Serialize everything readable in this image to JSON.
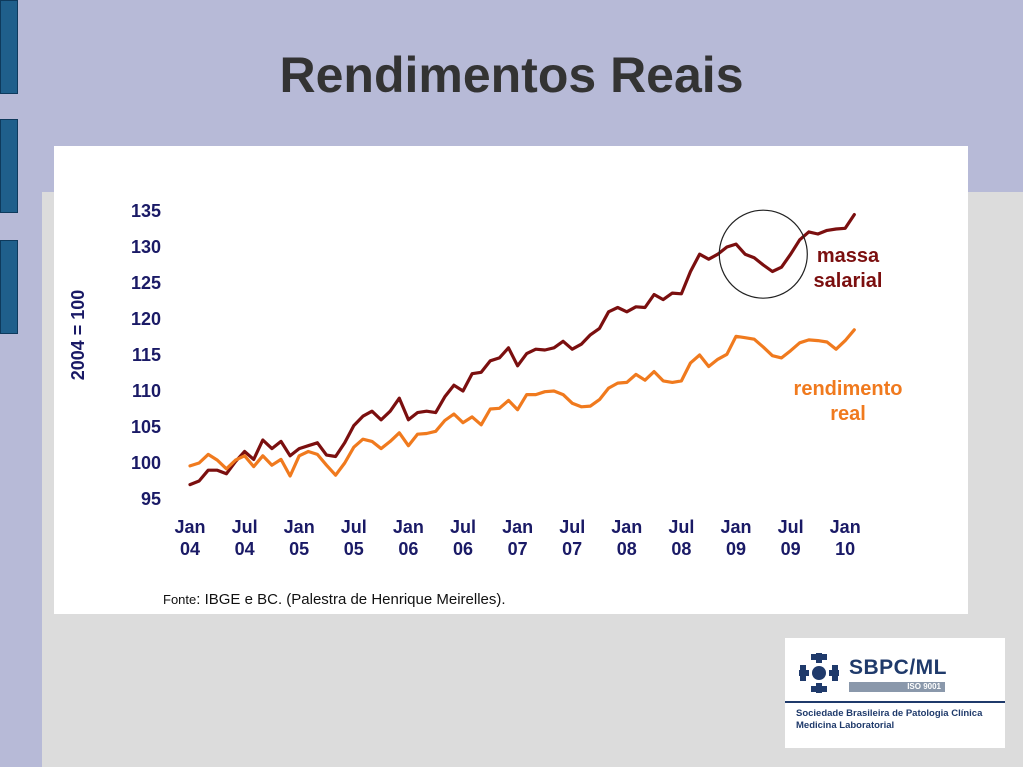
{
  "slide": {
    "title": "Rendimentos Reais",
    "source_label": "Fonte",
    "source_text": ": IBGE e BC. (Palestra de Henrique Meirelles)."
  },
  "logo": {
    "acronym": "SBPC/ML",
    "iso": "ISO 9001",
    "full_name": "Sociedade Brasileira de Patologia Clínica Medicina Laboratorial"
  },
  "colors": {
    "background": "#b7bad7",
    "massa": "#7b0f0f",
    "rendimento": "#f07a1e",
    "axis_text": "#1a1a66"
  },
  "chart_data": {
    "type": "line",
    "ylabel": "2004 = 100",
    "ylim": [
      95,
      135
    ],
    "yticks": [
      95,
      100,
      105,
      110,
      115,
      120,
      125,
      130,
      135
    ],
    "xticks": [
      "Jan 04",
      "Jul 04",
      "Jan 05",
      "Jul 05",
      "Jan 06",
      "Jul 06",
      "Jan 07",
      "Jul 07",
      "Jan 08",
      "Jul 08",
      "Jan 09",
      "Jul 09",
      "Jan 10"
    ],
    "grid": false,
    "annotation": "circle around Jan 09 – Jul 09 dip of massa salarial",
    "series": [
      {
        "name": "massa salarial",
        "color": "#7b0f0f",
        "x": [
          "2004-01",
          "2004-02",
          "2004-03",
          "2004-04",
          "2004-05",
          "2004-06",
          "2004-07",
          "2004-08",
          "2004-09",
          "2004-10",
          "2004-11",
          "2004-12",
          "2005-01",
          "2005-02",
          "2005-03",
          "2005-04",
          "2005-05",
          "2005-06",
          "2005-07",
          "2005-08",
          "2005-09",
          "2005-10",
          "2005-11",
          "2005-12",
          "2006-01",
          "2006-02",
          "2006-03",
          "2006-04",
          "2006-05",
          "2006-06",
          "2006-07",
          "2006-08",
          "2006-09",
          "2006-10",
          "2006-11",
          "2006-12",
          "2007-01",
          "2007-02",
          "2007-03",
          "2007-04",
          "2007-05",
          "2007-06",
          "2007-07",
          "2007-08",
          "2007-09",
          "2007-10",
          "2007-11",
          "2007-12",
          "2008-01",
          "2008-02",
          "2008-03",
          "2008-04",
          "2008-05",
          "2008-06",
          "2008-07",
          "2008-08",
          "2008-09",
          "2008-10",
          "2008-11",
          "2008-12",
          "2009-01",
          "2009-02",
          "2009-03",
          "2009-04",
          "2009-05",
          "2009-06",
          "2009-07",
          "2009-08",
          "2009-09",
          "2009-10",
          "2009-11",
          "2009-12",
          "2010-01",
          "2010-02"
        ],
        "values": [
          97.0,
          97.5,
          99.0,
          99.0,
          98.5,
          100.2,
          101.6,
          100.5,
          103.2,
          102.0,
          103.0,
          101.0,
          102.0,
          102.4,
          102.8,
          101.1,
          100.9,
          102.8,
          105.2,
          106.5,
          107.2,
          106.0,
          107.2,
          109.0,
          106.0,
          107.0,
          107.2,
          107.0,
          109.2,
          110.8,
          110.0,
          112.4,
          112.6,
          114.2,
          114.6,
          116.0,
          113.5,
          115.2,
          115.8,
          115.7,
          116.0,
          116.9,
          115.8,
          116.5,
          117.8,
          118.7,
          121.0,
          121.6,
          121.0,
          121.7,
          121.6,
          123.4,
          122.7,
          123.6,
          123.5,
          126.6,
          129.0,
          128.3,
          129.0,
          130.0,
          130.4,
          129.0,
          128.5,
          127.5,
          126.6,
          127.2,
          129.0,
          131.0,
          132.1,
          131.8,
          132.3,
          132.5,
          132.6,
          134.5
        ]
      },
      {
        "name": "rendimento real",
        "color": "#f07a1e",
        "x": [
          "2004-01",
          "2004-02",
          "2004-03",
          "2004-04",
          "2004-05",
          "2004-06",
          "2004-07",
          "2004-08",
          "2004-09",
          "2004-10",
          "2004-11",
          "2004-12",
          "2005-01",
          "2005-02",
          "2005-03",
          "2005-04",
          "2005-05",
          "2005-06",
          "2005-07",
          "2005-08",
          "2005-09",
          "2005-10",
          "2005-11",
          "2005-12",
          "2006-01",
          "2006-02",
          "2006-03",
          "2006-04",
          "2006-05",
          "2006-06",
          "2006-07",
          "2006-08",
          "2006-09",
          "2006-10",
          "2006-11",
          "2006-12",
          "2007-01",
          "2007-02",
          "2007-03",
          "2007-04",
          "2007-05",
          "2007-06",
          "2007-07",
          "2007-08",
          "2007-09",
          "2007-10",
          "2007-11",
          "2007-12",
          "2008-01",
          "2008-02",
          "2008-03",
          "2008-04",
          "2008-05",
          "2008-06",
          "2008-07",
          "2008-08",
          "2008-09",
          "2008-10",
          "2008-11",
          "2008-12",
          "2009-01",
          "2009-02",
          "2009-03",
          "2009-04",
          "2009-05",
          "2009-06",
          "2009-07",
          "2009-08",
          "2009-09",
          "2009-10",
          "2009-11",
          "2009-12",
          "2010-01",
          "2010-02"
        ],
        "values": [
          99.6,
          100.0,
          101.2,
          100.4,
          99.2,
          100.4,
          101.0,
          99.5,
          101.0,
          99.7,
          100.5,
          98.2,
          101.0,
          101.6,
          101.2,
          99.7,
          98.3,
          100.0,
          102.2,
          103.3,
          103.0,
          102.0,
          103.0,
          104.2,
          102.4,
          104.0,
          104.1,
          104.4,
          105.9,
          106.8,
          105.6,
          106.4,
          105.3,
          107.5,
          107.6,
          108.7,
          107.4,
          109.5,
          109.5,
          109.9,
          110.0,
          109.5,
          108.3,
          107.8,
          107.9,
          108.8,
          110.4,
          111.1,
          111.2,
          112.3,
          111.5,
          112.7,
          111.4,
          111.2,
          111.4,
          113.9,
          115.0,
          113.4,
          114.4,
          115.1,
          117.6,
          117.4,
          117.2,
          116.1,
          114.9,
          114.6,
          115.6,
          116.7,
          117.1,
          117.0,
          116.8,
          115.8,
          117.0,
          118.5
        ]
      }
    ],
    "series_labels": [
      {
        "lines": [
          "massa",
          "salarial"
        ],
        "color": "#7b0f0f"
      },
      {
        "lines": [
          "rendimento",
          "real"
        ],
        "color": "#f07a1e"
      }
    ]
  }
}
